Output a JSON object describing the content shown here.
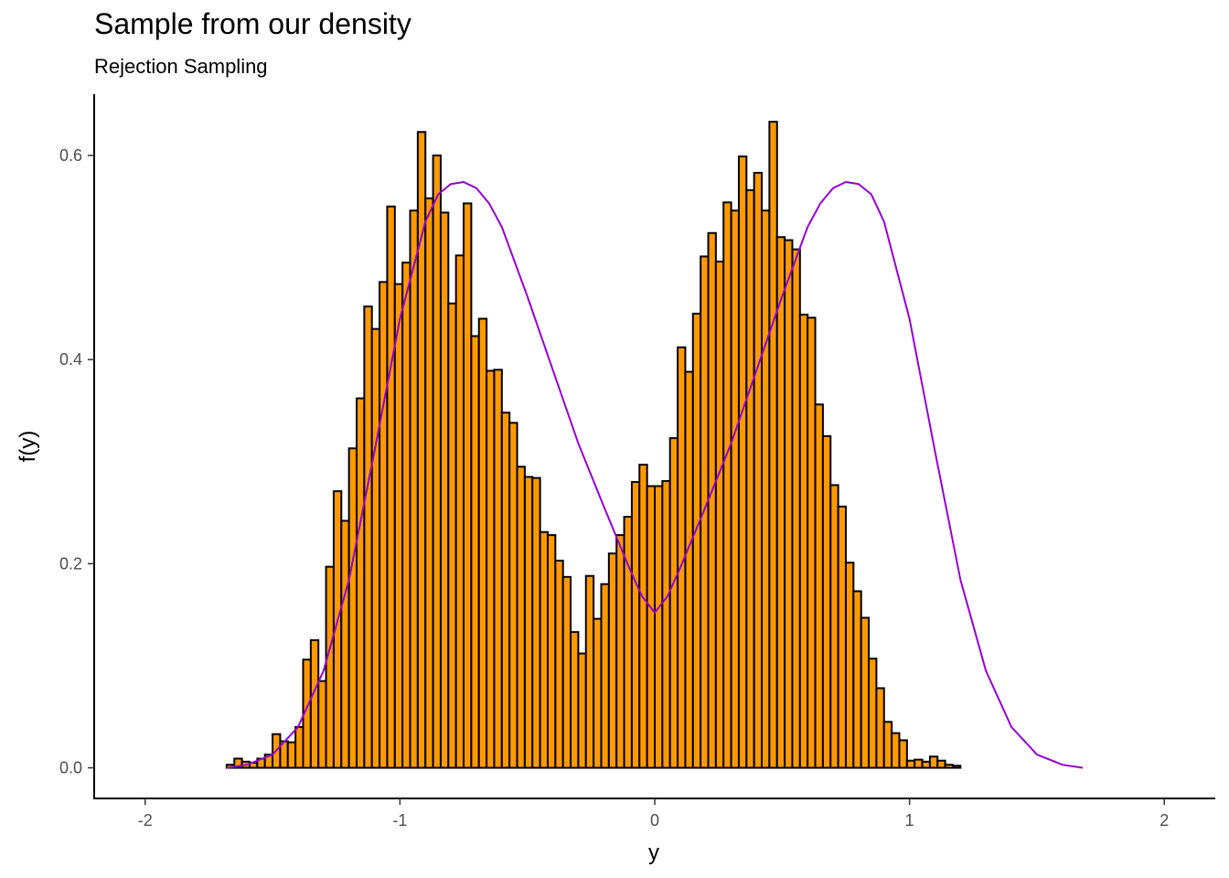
{
  "chart_data": {
    "type": "bar",
    "title": "Sample from our density",
    "subtitle": "Rejection Sampling",
    "xlabel": "y",
    "ylabel": "f(y)",
    "xlim": [
      -2.2,
      2.2
    ],
    "ylim": [
      -0.03,
      0.66
    ],
    "x_ticks": [
      -2,
      -1,
      0,
      1,
      2
    ],
    "x_tick_labels": [
      "-2",
      "-1",
      "0",
      "1",
      "2"
    ],
    "y_ticks": [
      0.0,
      0.2,
      0.4,
      0.6
    ],
    "y_tick_labels": [
      "0.0",
      "0.2",
      "0.4",
      "0.6"
    ],
    "grid": false,
    "histogram": {
      "bin_start": -1.68,
      "bin_width": 0.03,
      "fill_color": "#ff9900",
      "edge_color": "#000000",
      "values": [
        0.003,
        0.009,
        0.006,
        0.005,
        0.009,
        0.013,
        0.033,
        0.026,
        0.025,
        0.04,
        0.106,
        0.125,
        0.085,
        0.197,
        0.271,
        0.242,
        0.313,
        0.362,
        0.452,
        0.43,
        0.476,
        0.55,
        0.474,
        0.495,
        0.546,
        0.623,
        0.558,
        0.6,
        0.544,
        0.455,
        0.502,
        0.553,
        0.423,
        0.44,
        0.389,
        0.39,
        0.348,
        0.338,
        0.295,
        0.285,
        0.284,
        0.231,
        0.228,
        0.203,
        0.187,
        0.133,
        0.112,
        0.188,
        0.146,
        0.18,
        0.21,
        0.228,
        0.246,
        0.28,
        0.297,
        0.276,
        0.276,
        0.281,
        0.323,
        0.412,
        0.388,
        0.445,
        0.501,
        0.524,
        0.496,
        0.554,
        0.546,
        0.599,
        0.566,
        0.583,
        0.546,
        0.633,
        0.52,
        0.517,
        0.508,
        0.444,
        0.441,
        0.356,
        0.325,
        0.277,
        0.256,
        0.201,
        0.173,
        0.147,
        0.107,
        0.078,
        0.045,
        0.034,
        0.027,
        0.007,
        0.008,
        0.006,
        0.011,
        0.007,
        0.003,
        0.002
      ]
    },
    "density_curve": {
      "color": "#9400d3",
      "x": [
        -1.68,
        -1.6,
        -1.5,
        -1.4,
        -1.3,
        -1.2,
        -1.1,
        -1.0,
        -0.9,
        -0.85,
        -0.8,
        -0.75,
        -0.7,
        -0.65,
        -0.6,
        -0.5,
        -0.4,
        -0.3,
        -0.2,
        -0.1,
        -0.05,
        0.0,
        0.05,
        0.1,
        0.2,
        0.3,
        0.4,
        0.5,
        0.6,
        0.65,
        0.7,
        0.75,
        0.8,
        0.85,
        0.9,
        1.0,
        1.1,
        1.2,
        1.3,
        1.4,
        1.5,
        1.6,
        1.68
      ],
      "y": [
        0.0,
        0.003,
        0.013,
        0.04,
        0.095,
        0.184,
        0.31,
        0.44,
        0.535,
        0.562,
        0.572,
        0.574,
        0.568,
        0.553,
        0.53,
        0.462,
        0.39,
        0.318,
        0.256,
        0.196,
        0.168,
        0.152,
        0.168,
        0.196,
        0.256,
        0.318,
        0.39,
        0.462,
        0.53,
        0.553,
        0.568,
        0.574,
        0.572,
        0.562,
        0.535,
        0.44,
        0.31,
        0.184,
        0.095,
        0.04,
        0.013,
        0.003,
        0.0
      ]
    }
  }
}
